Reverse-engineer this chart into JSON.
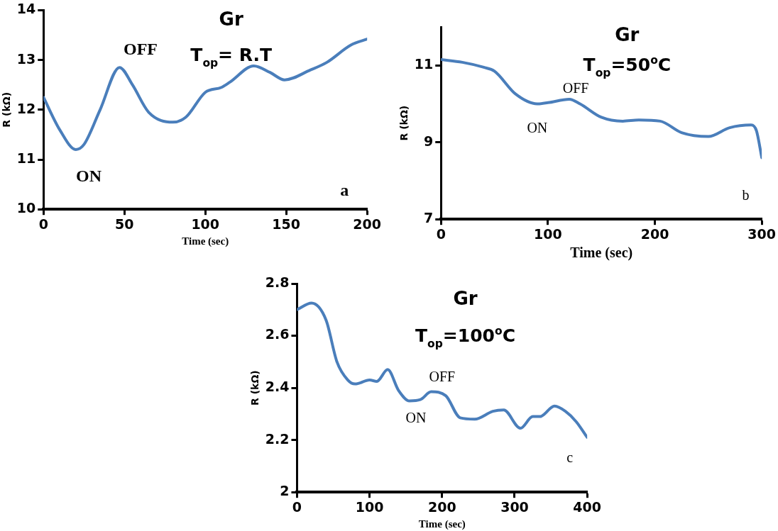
{
  "chart_data": [
    {
      "type": "line",
      "title": "Gr",
      "subtitle": "T$_{op}$= R.T",
      "xlabel": "Time (sec)",
      "ylabel": "R (kΩ)",
      "xlim": [
        0,
        200
      ],
      "xticks": [
        0,
        50,
        100,
        150,
        200
      ],
      "ylim": [
        10,
        14
      ],
      "yticks": [
        10,
        11,
        12,
        13,
        14
      ],
      "grid": false,
      "legend": false,
      "marker": "none",
      "line_style": "solid",
      "series": [
        {
          "color": "#4a7ebb",
          "x": [
            0,
            10,
            20,
            25,
            35,
            47,
            55,
            65,
            80,
            88,
            100,
            110,
            115,
            130,
            140,
            149,
            165,
            175,
            190,
            200
          ],
          "values": [
            12.25,
            11.6,
            11.2,
            11.3,
            12.0,
            12.85,
            12.5,
            11.95,
            11.75,
            11.85,
            12.35,
            12.45,
            12.55,
            12.88,
            12.75,
            12.6,
            12.8,
            12.95,
            13.3,
            13.42
          ]
        }
      ],
      "annotations": [
        "OFF",
        "ON",
        "a"
      ]
    },
    {
      "type": "line",
      "title": "Gr",
      "subtitle": "T$_{op}$=50$^{o}$C",
      "xlabel": "Time (sec)",
      "ylabel": "R (kΩ)",
      "xlim": [
        0,
        300
      ],
      "xticks": [
        0,
        100,
        200,
        300
      ],
      "ylim": [
        7,
        12
      ],
      "yticks": [
        7,
        9,
        11
      ],
      "grid": false,
      "legend": false,
      "marker": "none",
      "line_style": "solid",
      "series": [
        {
          "color": "#4a7ebb",
          "x": [
            0,
            20,
            40,
            50,
            70,
            90,
            100,
            120,
            130,
            150,
            170,
            185,
            205,
            225,
            250,
            270,
            290,
            295,
            300
          ],
          "values": [
            11.15,
            11.08,
            10.95,
            10.85,
            10.25,
            10.0,
            10.03,
            10.12,
            10.0,
            9.65,
            9.55,
            9.58,
            9.55,
            9.25,
            9.15,
            9.38,
            9.45,
            9.3,
            8.6
          ]
        }
      ],
      "annotations": [
        "OFF",
        "ON",
        "b"
      ]
    },
    {
      "type": "line",
      "title": "Gr",
      "subtitle": "T$_{op}$=100$^{o}$C",
      "xlabel": "Time (sec)",
      "ylabel": "R (kΩ)",
      "xlim": [
        0,
        400
      ],
      "xticks": [
        0,
        100,
        200,
        300,
        400
      ],
      "ylim": [
        2,
        2.8
      ],
      "yticks": [
        2,
        2.2,
        2.4,
        2.6,
        2.8
      ],
      "grid": false,
      "legend": false,
      "marker": "none",
      "line_style": "solid",
      "series": [
        {
          "color": "#4a7ebb",
          "x": [
            0,
            20,
            40,
            55,
            70,
            80,
            100,
            110,
            125,
            140,
            155,
            170,
            185,
            205,
            225,
            245,
            270,
            285,
            308,
            325,
            335,
            355,
            370,
            385,
            400
          ],
          "values": [
            2.7,
            2.725,
            2.66,
            2.5,
            2.43,
            2.415,
            2.43,
            2.425,
            2.47,
            2.39,
            2.35,
            2.355,
            2.385,
            2.37,
            2.285,
            2.28,
            2.31,
            2.315,
            2.245,
            2.29,
            2.29,
            2.33,
            2.31,
            2.27,
            2.21
          ]
        }
      ],
      "annotations": [
        "OFF",
        "ON",
        "c"
      ]
    }
  ]
}
